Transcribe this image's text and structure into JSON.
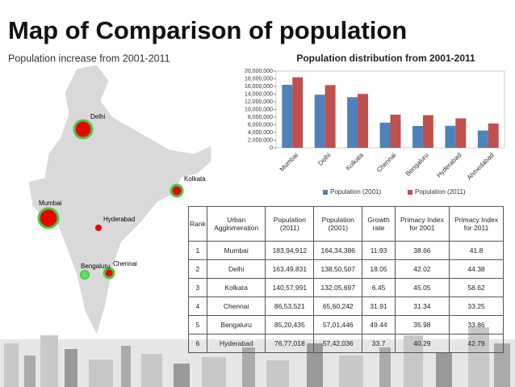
{
  "slide_title": "Map of Comparison of population",
  "subtitle": "Population increase from 2001-2011",
  "map": {
    "labels": [
      "Delhi",
      "Kolkata",
      "Mumbai",
      "Hyderabad",
      "Bengaluru",
      "Chennai"
    ]
  },
  "chart_data": {
    "type": "bar",
    "title": "Population distribution from 2001-2011",
    "categories": [
      "Mumbai",
      "Delhi",
      "Kolkata",
      "Chennai",
      "Bengaluru",
      "Hyderabad",
      "Ahmedabad"
    ],
    "series": [
      {
        "name": "Population (2001)",
        "color": "#4f81bd",
        "values": [
          16434386,
          13850507,
          13205697,
          6560242,
          5701446,
          5742036,
          4500000
        ]
      },
      {
        "name": "Population (2011)",
        "color": "#c0504d",
        "values": [
          18394912,
          16349831,
          14057991,
          8653521,
          8520435,
          7677018,
          6350000
        ]
      }
    ],
    "ylim": [
      0,
      20000000
    ],
    "yticks": [
      0,
      {
        "value": 2000000,
        "label": "2,000,000"
      },
      {
        "value": 4000000,
        "label": "4,000,000"
      },
      {
        "value": 6000000,
        "label": "6,000,000"
      },
      {
        "value": 8000000,
        "label": "8,000,000"
      },
      {
        "value": 10000000,
        "label": "10,000,000"
      },
      {
        "value": 12000000,
        "label": "12,000,000"
      },
      {
        "value": 14000000,
        "label": "14,000,000"
      },
      {
        "value": 16000000,
        "label": "16,000,000"
      },
      {
        "value": 18000000,
        "label": "18,000,000"
      },
      {
        "value": 20000000,
        "label": "20,000,000"
      }
    ],
    "legend": "bottom"
  },
  "table": {
    "header": [
      "Rank",
      "Urban Agglomeration",
      "Population (2011)",
      "Population (2001)",
      "Growth rate",
      "Primacy Index for 2001",
      "Primacy Index for 2011"
    ],
    "rows": [
      [
        "1",
        "Mumbai",
        "183,94,912",
        "164,34,386",
        "11.93",
        "38.66",
        "41.8"
      ],
      [
        "2",
        "Delhi",
        "163,49,831",
        "138,50,507",
        "18.05",
        "42.02",
        "44.38"
      ],
      [
        "3",
        "Kolkata",
        "140,57,991",
        "132,05,697",
        "6.45",
        "45.05",
        "58.62"
      ],
      [
        "4",
        "Chennai",
        "86,53,521",
        "65,60,242",
        "31.91",
        "31.34",
        "33.25"
      ],
      [
        "5",
        "Bengaluru",
        "85,20,435",
        "57,01,446",
        "49.44",
        "35.98",
        "33.86"
      ],
      [
        "6",
        "Hyderabad",
        "76,77,018",
        "57,42,036",
        "33.7",
        "40.29",
        "42.79"
      ]
    ]
  }
}
